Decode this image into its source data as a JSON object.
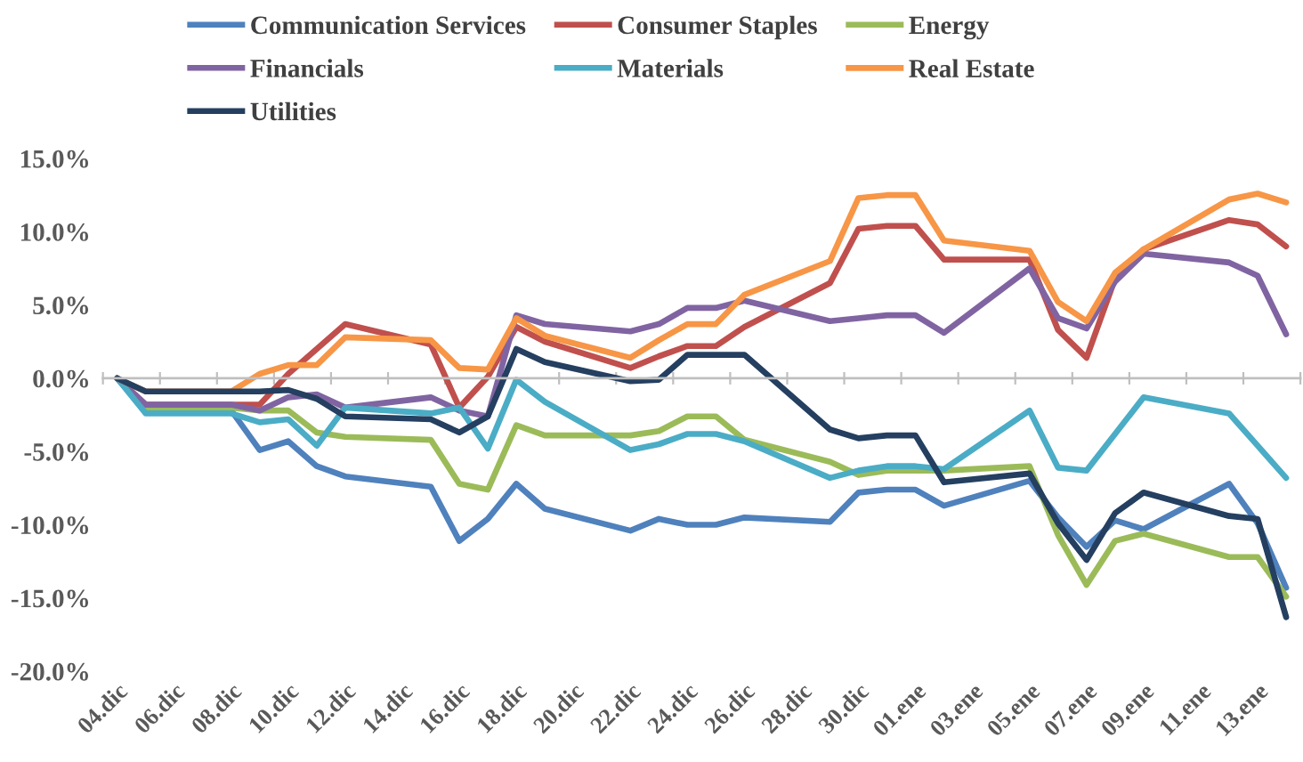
{
  "chart_data": {
    "type": "line",
    "categories": [
      "04.dic",
      null,
      "06.dic",
      null,
      "08.dic",
      null,
      "10.dic",
      null,
      "12.dic",
      null,
      "14.dic",
      null,
      "16.dic",
      null,
      "18.dic",
      null,
      "20.dic",
      null,
      "22.dic",
      null,
      "24.dic",
      null,
      "26.dic",
      null,
      "28.dic",
      null,
      "30.dic",
      null,
      "01.ene",
      null,
      "03.ene",
      null,
      "05.ene",
      null,
      "07.ene",
      null,
      "09.ene",
      null,
      "11.ene",
      null,
      "13.ene",
      null
    ],
    "series": [
      {
        "name": "Communication Services",
        "color": "#4f81bd",
        "values": [
          0,
          -2.2,
          null,
          null,
          -2.2,
          -4.9,
          -4.3,
          -6.0,
          -6.7,
          null,
          null,
          -7.4,
          -11.1,
          -9.6,
          -7.2,
          -8.9,
          null,
          null,
          -10.4,
          -9.6,
          -10.0,
          -10.0,
          -9.5,
          null,
          null,
          -9.8,
          -7.8,
          -7.6,
          -7.6,
          -8.7,
          null,
          null,
          -7.0,
          -9.5,
          -11.5,
          -9.7,
          -10.3,
          null,
          null,
          -7.2,
          -9.9,
          -14.3
        ]
      },
      {
        "name": "Consumer Staples",
        "color": "#c0504d",
        "values": [
          0,
          -1.8,
          null,
          null,
          -1.8,
          -1.8,
          0.3,
          2.0,
          3.7,
          null,
          null,
          2.3,
          -2.0,
          0.1,
          3.5,
          2.5,
          null,
          null,
          0.7,
          1.5,
          2.2,
          2.2,
          3.5,
          null,
          null,
          6.5,
          10.2,
          10.4,
          10.4,
          8.1,
          null,
          null,
          8.1,
          3.3,
          1.4,
          6.8,
          8.8,
          null,
          null,
          10.8,
          10.5,
          9.0
        ]
      },
      {
        "name": "Energy",
        "color": "#9bbb59",
        "values": [
          0,
          -2.0,
          null,
          null,
          -2.0,
          -2.2,
          -2.2,
          -3.7,
          -4.0,
          null,
          null,
          -4.2,
          -7.2,
          -7.6,
          -3.2,
          -3.9,
          null,
          null,
          -3.9,
          -3.6,
          -2.6,
          -2.6,
          -4.2,
          null,
          null,
          -5.7,
          -6.6,
          -6.3,
          -6.3,
          -6.3,
          null,
          null,
          -6.0,
          -10.7,
          -14.1,
          -11.1,
          -10.6,
          null,
          null,
          -12.2,
          -12.2,
          -14.9
        ]
      },
      {
        "name": "Financials",
        "color": "#8064a2",
        "values": [
          0,
          -1.8,
          null,
          null,
          -1.8,
          -2.2,
          -1.3,
          -1.1,
          -2.0,
          null,
          null,
          -1.3,
          -2.2,
          -2.6,
          4.3,
          3.7,
          null,
          null,
          3.2,
          3.7,
          4.8,
          4.8,
          5.3,
          null,
          null,
          3.9,
          4.1,
          4.3,
          4.3,
          3.1,
          null,
          null,
          7.5,
          4.1,
          3.4,
          6.6,
          8.5,
          null,
          null,
          7.9,
          7.0,
          3.0
        ]
      },
      {
        "name": "Materials",
        "color": "#4bacc6",
        "values": [
          0,
          -2.4,
          null,
          null,
          -2.4,
          -3.0,
          -2.8,
          -4.6,
          -2.0,
          null,
          null,
          -2.4,
          -2.0,
          -4.8,
          -0.1,
          -1.6,
          null,
          null,
          -4.9,
          -4.5,
          -3.8,
          -3.8,
          -4.3,
          null,
          null,
          -6.8,
          -6.3,
          -6.0,
          -6.0,
          -6.2,
          null,
          null,
          -2.2,
          -6.1,
          -6.3,
          -3.8,
          -1.3,
          null,
          null,
          -2.4,
          -4.6,
          -6.8
        ]
      },
      {
        "name": "Real Estate",
        "color": "#f79646",
        "values": [
          0,
          -0.9,
          null,
          null,
          -0.9,
          0.3,
          0.9,
          0.9,
          2.8,
          null,
          null,
          2.6,
          0.7,
          0.6,
          4.1,
          2.9,
          null,
          null,
          1.4,
          2.6,
          3.7,
          3.7,
          5.7,
          null,
          null,
          8.0,
          12.3,
          12.5,
          12.5,
          9.4,
          null,
          null,
          8.7,
          5.2,
          3.9,
          7.2,
          8.8,
          null,
          null,
          12.2,
          12.6,
          12.0
        ]
      },
      {
        "name": "Utilities",
        "color": "#243f60",
        "values": [
          0,
          -0.9,
          null,
          null,
          -0.9,
          -0.9,
          -0.8,
          -1.4,
          -2.6,
          null,
          null,
          -2.8,
          -3.7,
          -2.6,
          2.0,
          1.1,
          null,
          null,
          -0.2,
          -0.1,
          1.6,
          1.6,
          1.6,
          null,
          null,
          -3.5,
          -4.1,
          -3.9,
          -3.9,
          -7.1,
          null,
          null,
          -6.5,
          -9.9,
          -12.4,
          -9.2,
          -7.8,
          null,
          null,
          -9.4,
          -9.6,
          -16.3
        ]
      }
    ],
    "ylim": [
      -20,
      15
    ],
    "yticks": [
      {
        "value": -20,
        "label": "-20.0%"
      },
      {
        "value": -15,
        "label": "-15.0%"
      },
      {
        "value": -10,
        "label": "-10.0%"
      },
      {
        "value": -5,
        "label": "-5.0%"
      },
      {
        "value": 0,
        "label": "0.0%"
      },
      {
        "value": 5,
        "label": "5.0%"
      },
      {
        "value": 10,
        "label": "10.0%"
      },
      {
        "value": 15,
        "label": "15.0%"
      }
    ],
    "legend": "top"
  }
}
